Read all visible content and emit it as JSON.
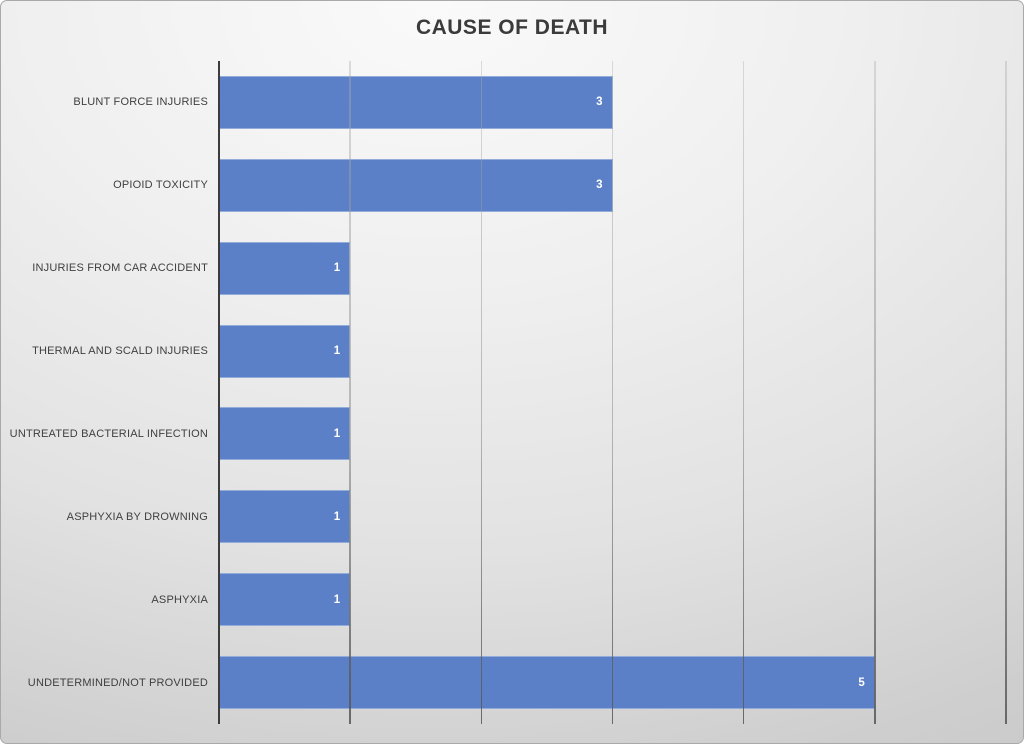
{
  "chart_data": {
    "type": "bar",
    "orientation": "horizontal",
    "title": "CAUSE OF DEATH",
    "categories": [
      "BLUNT FORCE INJURIES",
      "OPIOID TOXICITY",
      "INJURIES FROM CAR ACCIDENT",
      "THERMAL AND SCALD INJURIES",
      "UNTREATED BACTERIAL INFECTION",
      "ASPHYXIA BY DROWNING",
      "ASPHYXIA",
      "UNDETERMINED/NOT PROVIDED"
    ],
    "values": [
      3,
      3,
      1,
      1,
      1,
      1,
      1,
      5
    ],
    "xlabel": "",
    "ylabel": "",
    "xlim": [
      0,
      6
    ],
    "gridline_values": [
      1,
      2,
      3,
      4,
      5,
      6
    ],
    "gridlines": "vertical",
    "legend": "none",
    "data_labels": "inside-end",
    "colors": {
      "bar_fill": "#5b80c7",
      "data_label": "#ffffff",
      "title_text": "#3b3b3b",
      "category_text": "#404040",
      "axis_line": "#3c3c3c",
      "background_light": "#fafafa",
      "background_dark": "#c2c2c2"
    }
  }
}
